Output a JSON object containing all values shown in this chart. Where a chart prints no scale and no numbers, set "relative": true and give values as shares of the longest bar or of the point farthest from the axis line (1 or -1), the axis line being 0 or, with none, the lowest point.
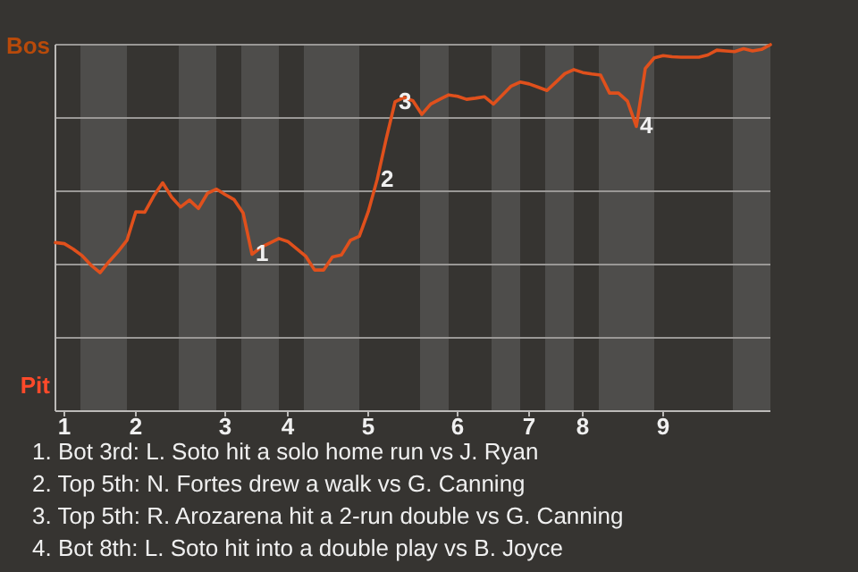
{
  "chart_data": {
    "type": "line",
    "relative": true,
    "categories": [
      null,
      "1",
      null,
      null,
      null,
      null,
      null,
      null,
      null,
      "2",
      null,
      null,
      null,
      null,
      null,
      null,
      null,
      null,
      null,
      "3",
      null,
      null,
      null,
      null,
      null,
      null,
      "4",
      null,
      null,
      null,
      null,
      null,
      null,
      null,
      null,
      "5",
      null,
      null,
      null,
      null,
      null,
      null,
      null,
      null,
      null,
      "6",
      null,
      null,
      null,
      null,
      null,
      null,
      null,
      "7",
      null,
      null,
      null,
      null,
      null,
      "8",
      null,
      null,
      null,
      null,
      null,
      null,
      null,
      null,
      "9",
      null,
      null,
      null,
      null,
      null,
      null,
      null,
      null,
      null,
      null,
      null,
      null
    ],
    "series": [
      {
        "color": "#e0501c",
        "values": [
          0.46,
          0.457,
          0.442,
          0.424,
          0.398,
          0.378,
          0.408,
          0.435,
          0.466,
          0.544,
          0.543,
          0.587,
          0.623,
          0.584,
          0.557,
          0.576,
          0.553,
          0.594,
          0.606,
          0.591,
          0.577,
          0.541,
          0.428,
          0.447,
          0.459,
          0.471,
          0.463,
          0.443,
          0.423,
          0.385,
          0.385,
          0.421,
          0.426,
          0.466,
          0.477,
          0.544,
          0.632,
          0.742,
          0.844,
          0.856,
          0.847,
          0.81,
          0.838,
          0.851,
          0.863,
          0.859,
          0.851,
          0.854,
          0.858,
          0.838,
          0.862,
          0.887,
          0.898,
          0.893,
          0.884,
          0.875,
          0.898,
          0.921,
          0.932,
          0.924,
          0.92,
          0.917,
          0.868,
          0.868,
          0.846,
          0.777,
          0.935,
          0.964,
          0.97,
          0.967,
          0.966,
          0.966,
          0.966,
          0.972,
          0.985,
          0.983,
          0.981,
          0.989,
          0.983,
          0.987,
          1
        ]
      }
    ],
    "grid": "y",
    "marker": "none",
    "line_style": "solid",
    "annotations": [
      "Bos",
      "Pit",
      {
        "text": "1",
        "y": 0.428
      },
      {
        "text": "2",
        "y": 0.632
      },
      {
        "text": "3",
        "y": 0.844
      },
      {
        "text": "4",
        "y": 0.777
      },
      "1. Bot 3rd: L. Soto hit a solo home run vs J. Ryan",
      "2. Top 5th: N. Fortes drew a walk vs G. Canning",
      "3. Top 5th: R. Arozarena hit a 2-run double vs G. Canning",
      "4. Bot 8th: L. Soto hit into a double play vs B. Joyce"
    ]
  }
}
